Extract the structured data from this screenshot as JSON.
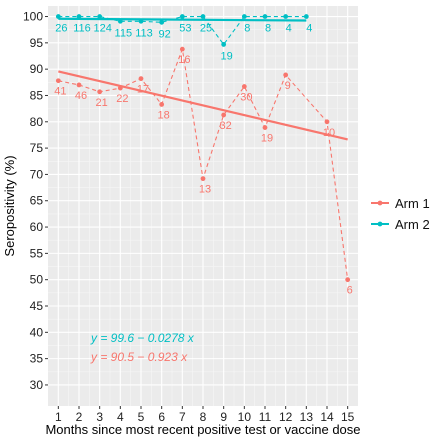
{
  "chart_data": {
    "type": "line",
    "title": "",
    "xlabel": "Months since most recent positive test or vaccine dose",
    "ylabel": "Seropositivity (%)",
    "xlim": [
      0.5,
      15.5
    ],
    "ylim": [
      26,
      102
    ],
    "x_ticks": [
      1,
      2,
      3,
      4,
      5,
      6,
      7,
      8,
      9,
      10,
      11,
      12,
      13,
      14,
      15
    ],
    "y_ticks": [
      30,
      35,
      40,
      45,
      50,
      55,
      60,
      65,
      70,
      75,
      80,
      85,
      90,
      95,
      100
    ],
    "grid": true,
    "legend_position": "right",
    "series": [
      {
        "name": "Arm 1",
        "color": "#f8766d",
        "points": [
          {
            "x": 1,
            "y": 87.8,
            "n": "41"
          },
          {
            "x": 2,
            "y": 87.0,
            "n": "46"
          },
          {
            "x": 3,
            "y": 85.7,
            "n": "21"
          },
          {
            "x": 4,
            "y": 86.4,
            "n": "22"
          },
          {
            "x": 5,
            "y": 88.2,
            "n": "17"
          },
          {
            "x": 6,
            "y": 83.3,
            "n": "18"
          },
          {
            "x": 7,
            "y": 93.8,
            "n": "16"
          },
          {
            "x": 8,
            "y": 69.2,
            "n": "13"
          },
          {
            "x": 9,
            "y": 81.3,
            "n": "32"
          },
          {
            "x": 10,
            "y": 86.7,
            "n": "30"
          },
          {
            "x": 11,
            "y": 78.9,
            "n": "19"
          },
          {
            "x": 12,
            "y": 88.9,
            "n": "9"
          },
          {
            "x": 14,
            "y": 80.0,
            "n": "10"
          },
          {
            "x": 15,
            "y": 50.0,
            "n": "6"
          }
        ],
        "fit": {
          "intercept": 90.5,
          "slope": -0.923,
          "x_range": [
            1,
            15
          ],
          "label": "y = 90.5 − 0.923 x"
        }
      },
      {
        "name": "Arm 2",
        "color": "#00bfc4",
        "points": [
          {
            "x": 1,
            "y": 100,
            "n": "26"
          },
          {
            "x": 2,
            "y": 100,
            "n": "116"
          },
          {
            "x": 3,
            "y": 100,
            "n": "124"
          },
          {
            "x": 4,
            "y": 99.1,
            "n": "115"
          },
          {
            "x": 5,
            "y": 99.1,
            "n": "113"
          },
          {
            "x": 6,
            "y": 98.9,
            "n": "92"
          },
          {
            "x": 7,
            "y": 100,
            "n": "53"
          },
          {
            "x": 8,
            "y": 100,
            "n": "25"
          },
          {
            "x": 9,
            "y": 94.7,
            "n": "19"
          },
          {
            "x": 10,
            "y": 100,
            "n": "8"
          },
          {
            "x": 11,
            "y": 100,
            "n": "8"
          },
          {
            "x": 12,
            "y": 100,
            "n": "4"
          },
          {
            "x": 13,
            "y": 100,
            "n": "4"
          }
        ],
        "fit": {
          "intercept": 99.6,
          "slope": -0.0278,
          "x_range": [
            1,
            13
          ],
          "label": "y = 99.6 − 0.0278 x"
        }
      }
    ]
  }
}
